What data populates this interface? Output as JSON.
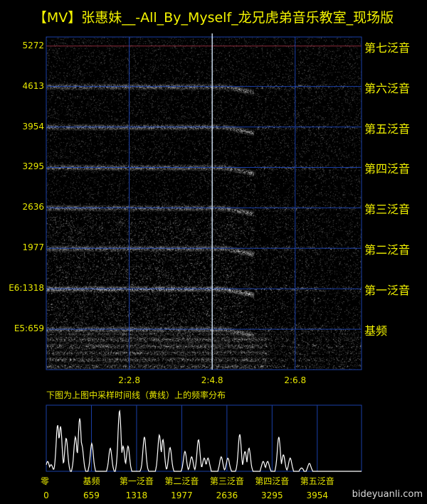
{
  "title": "【MV】张惠妹__-All_By_Myself_龙兄虎弟音乐教室_现场版",
  "caption": "下图为上图中采样时间线（黄线）上的频率分布",
  "watermark": "bideyuanli.com",
  "colors": {
    "text": "#f4f400",
    "grid": "#1a3fa8",
    "top_line": "#8a2a3a",
    "time_line": "#dff0ff",
    "spectrum": "#ffffff"
  },
  "chart_data": [
    {
      "type": "heatmap",
      "subtype": "spectrogram",
      "ylabel": "",
      "y_ticks": [
        5272,
        4613,
        3954,
        3295,
        2636,
        1977,
        1318,
        659
      ],
      "y_tick_labels": [
        "5272",
        "4613",
        "3954",
        "3295",
        "2636",
        "1977",
        "E6:1318",
        "E5:659"
      ],
      "harmonic_labels": [
        "第七泛音",
        "第六泛音",
        "第五泛音",
        "第四泛音",
        "第三泛音",
        "第二泛音",
        "第一泛音",
        "基频"
      ],
      "ylim": [
        0,
        5420
      ],
      "x_tick_labels": [
        "2:2.8",
        "2:4.8",
        "2:6.8"
      ],
      "x_ticks_seconds": [
        122.8,
        124.8,
        126.8
      ],
      "xlim_seconds": [
        120.8,
        128.4
      ],
      "sample_time_seconds": 124.8,
      "grid": true
    },
    {
      "type": "line",
      "subtype": "frequency distribution at sample time",
      "x_ticks": [
        0,
        659,
        1318,
        1977,
        2636,
        3295,
        3954
      ],
      "x_tick_names": [
        "零",
        "基频",
        "第一泛音",
        "第二泛音",
        "第三泛音",
        "第四泛音",
        "第五泛音"
      ],
      "x_tick_labels": [
        "0",
        "659",
        "1318",
        "1977",
        "2636",
        "3295",
        "3954"
      ],
      "xlim": [
        0,
        4600
      ],
      "ylim": [
        0,
        1
      ],
      "peaks": [
        [
          20,
          0.15
        ],
        [
          70,
          0.1
        ],
        [
          166,
          0.7
        ],
        [
          208,
          0.68
        ],
        [
          291,
          0.5
        ],
        [
          425,
          0.52
        ],
        [
          488,
          0.8
        ],
        [
          519,
          0.4
        ],
        [
          664,
          0.42
        ],
        [
          934,
          0.35
        ],
        [
          1069,
          0.92
        ],
        [
          1121,
          0.38
        ],
        [
          1193,
          0.38
        ],
        [
          1432,
          0.52
        ],
        [
          1650,
          0.55
        ],
        [
          1702,
          0.48
        ],
        [
          1806,
          0.36
        ],
        [
          2024,
          0.3
        ],
        [
          2121,
          0.22
        ],
        [
          2221,
          0.48
        ],
        [
          2304,
          0.2
        ],
        [
          2360,
          0.2
        ],
        [
          2553,
          0.22
        ],
        [
          2650,
          0.2
        ],
        [
          2823,
          0.56
        ],
        [
          2900,
          0.3
        ],
        [
          2958,
          0.35
        ],
        [
          3165,
          0.15
        ],
        [
          3230,
          0.15
        ],
        [
          3393,
          0.52
        ],
        [
          3460,
          0.25
        ],
        [
          3559,
          0.2
        ],
        [
          3725,
          0.05
        ],
        [
          3839,
          0.12
        ]
      ]
    }
  ]
}
